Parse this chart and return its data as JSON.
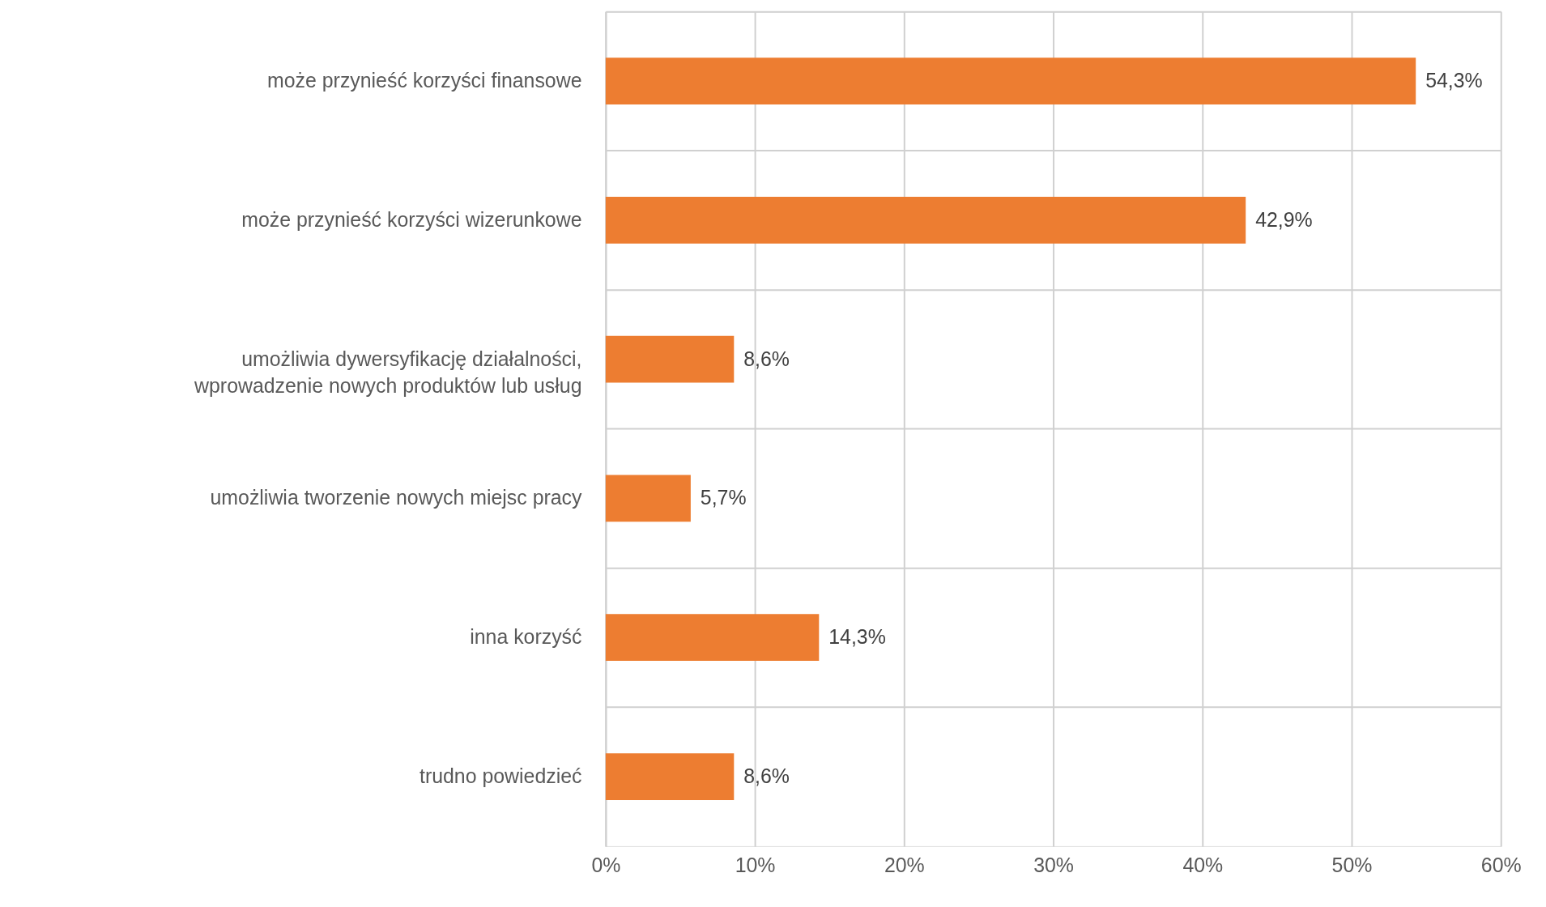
{
  "chart_data": {
    "type": "bar",
    "orientation": "horizontal",
    "categories": [
      "może przynieść korzyści finansowe",
      "może przynieść korzyści wizerunkowe",
      "umożliwia dywersyfikację działalności,\nwprowadzenie nowych produktów lub usług",
      "umożliwia tworzenie nowych miejsc pracy",
      "inna korzyść",
      "trudno powiedzieć"
    ],
    "values": [
      54.3,
      42.9,
      8.6,
      5.7,
      14.3,
      8.6
    ],
    "value_labels": [
      "54,3%",
      "42,9%",
      "8,6%",
      "5,7%",
      "14,3%",
      "8,6%"
    ],
    "color": "#ed7d31",
    "xlim": [
      0,
      60
    ],
    "xticks": [
      {
        "value": 0,
        "label": "0%"
      },
      {
        "value": 10,
        "label": "10%"
      },
      {
        "value": 20,
        "label": "20%"
      },
      {
        "value": 30,
        "label": "30%"
      },
      {
        "value": 40,
        "label": "40%"
      },
      {
        "value": 50,
        "label": "50%"
      },
      {
        "value": 60,
        "label": "60%"
      }
    ],
    "grid": true
  }
}
